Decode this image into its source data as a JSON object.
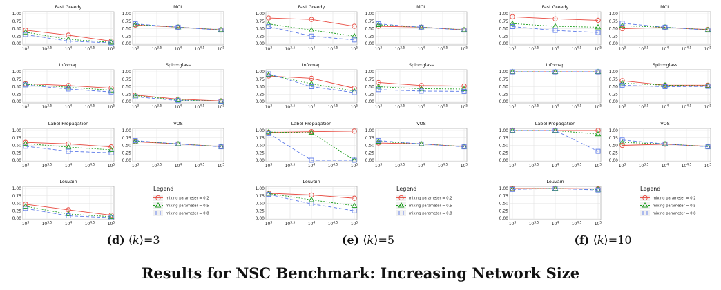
{
  "figure": {
    "title": "Results for NSC Benchmark: Increasing Network Size",
    "captions": [
      {
        "label": "(d)",
        "k": "3"
      },
      {
        "label": "(e)",
        "k": "5"
      },
      {
        "label": "(f)",
        "k": "10"
      }
    ]
  },
  "legend": {
    "title": "Legend",
    "entries": [
      "mixing parameter = 0.2",
      "mixing parameter = 0.5",
      "mixing parameter = 0.8"
    ]
  },
  "series_colors": [
    "#e8493f",
    "#1a9c1a",
    "#5a78e8"
  ],
  "axis": {
    "x_ticks": [
      "10^3",
      "10^3.5",
      "10^4",
      "10^4.5",
      "10^5"
    ],
    "y_ticks": [
      "0.00",
      "0.25",
      "0.50",
      "0.75",
      "1.00"
    ],
    "ylim": [
      0,
      1
    ],
    "x_scale": "log10",
    "grid": true
  },
  "chart_data": [
    {
      "type": "line",
      "group": "<k>=3",
      "x": [
        1000,
        10000,
        100000
      ],
      "panels": [
        {
          "title": "Fast Greedy",
          "series": [
            {
              "name": "mixing parameter = 0.2",
              "values": [
                0.45,
                0.28,
                0.08
              ]
            },
            {
              "name": "mixing parameter = 0.5",
              "values": [
                0.38,
                0.14,
                0.04
              ]
            },
            {
              "name": "mixing parameter = 0.8",
              "values": [
                0.3,
                0.08,
                0.02
              ]
            }
          ]
        },
        {
          "title": "MCL",
          "series": [
            {
              "name": "mixing parameter = 0.2",
              "values": [
                0.62,
                0.55,
                0.46
              ]
            },
            {
              "name": "mixing parameter = 0.5",
              "values": [
                0.64,
                0.55,
                0.46
              ]
            },
            {
              "name": "mixing parameter = 0.8",
              "values": [
                0.66,
                0.55,
                0.45
              ]
            }
          ]
        },
        {
          "title": "Infomap",
          "series": [
            {
              "name": "mixing parameter = 0.2",
              "values": [
                0.6,
                0.54,
                0.45
              ]
            },
            {
              "name": "mixing parameter = 0.5",
              "values": [
                0.58,
                0.48,
                0.38
              ]
            },
            {
              "name": "mixing parameter = 0.8",
              "values": [
                0.56,
                0.42,
                0.32
              ]
            }
          ]
        },
        {
          "title": "Spin−glass",
          "series": [
            {
              "name": "mixing parameter = 0.2",
              "values": [
                0.22,
                0.08,
                0.02
              ]
            },
            {
              "name": "mixing parameter = 0.5",
              "values": [
                0.2,
                0.05,
                0.01
              ]
            },
            {
              "name": "mixing parameter = 0.8",
              "values": [
                0.16,
                0.03,
                0.01
              ]
            }
          ]
        },
        {
          "title": "Label Propagation",
          "series": [
            {
              "name": "mixing parameter = 0.2",
              "values": [
                0.6,
                0.55,
                0.45
              ]
            },
            {
              "name": "mixing parameter = 0.5",
              "values": [
                0.56,
                0.44,
                0.35
              ]
            },
            {
              "name": "mixing parameter = 0.8",
              "values": [
                0.47,
                0.3,
                0.25
              ]
            }
          ]
        },
        {
          "title": "VOS",
          "series": [
            {
              "name": "mixing parameter = 0.2",
              "values": [
                0.62,
                0.55,
                0.46
              ]
            },
            {
              "name": "mixing parameter = 0.5",
              "values": [
                0.64,
                0.55,
                0.46
              ]
            },
            {
              "name": "mixing parameter = 0.8",
              "values": [
                0.66,
                0.55,
                0.45
              ]
            }
          ]
        },
        {
          "title": "Louvain",
          "series": [
            {
              "name": "mixing parameter = 0.2",
              "values": [
                0.47,
                0.28,
                0.1
              ]
            },
            {
              "name": "mixing parameter = 0.5",
              "values": [
                0.4,
                0.14,
                0.05
              ]
            },
            {
              "name": "mixing parameter = 0.8",
              "values": [
                0.33,
                0.08,
                0.02
              ]
            }
          ]
        }
      ]
    },
    {
      "type": "line",
      "group": "<k>=5",
      "x": [
        1000,
        10000,
        100000
      ],
      "panels": [
        {
          "title": "Fast Greedy",
          "series": [
            {
              "name": "mixing parameter = 0.2",
              "values": [
                0.86,
                0.81,
                0.58
              ]
            },
            {
              "name": "mixing parameter = 0.5",
              "values": [
                0.66,
                0.45,
                0.25
              ]
            },
            {
              "name": "mixing parameter = 0.8",
              "values": [
                0.57,
                0.25,
                0.12
              ]
            }
          ]
        },
        {
          "title": "MCL",
          "series": [
            {
              "name": "mixing parameter = 0.2",
              "values": [
                0.58,
                0.55,
                0.46
              ]
            },
            {
              "name": "mixing parameter = 0.5",
              "values": [
                0.63,
                0.55,
                0.46
              ]
            },
            {
              "name": "mixing parameter = 0.8",
              "values": [
                0.66,
                0.55,
                0.45
              ]
            }
          ]
        },
        {
          "title": "Infomap",
          "series": [
            {
              "name": "mixing parameter = 0.2",
              "values": [
                0.86,
                0.78,
                0.45
              ]
            },
            {
              "name": "mixing parameter = 0.5",
              "values": [
                0.9,
                0.6,
                0.35
              ]
            },
            {
              "name": "mixing parameter = 0.8",
              "values": [
                0.93,
                0.5,
                0.3
              ]
            }
          ]
        },
        {
          "title": "Spin−glass",
          "series": [
            {
              "name": "mixing parameter = 0.2",
              "values": [
                0.64,
                0.54,
                0.52
              ]
            },
            {
              "name": "mixing parameter = 0.5",
              "values": [
                0.5,
                0.43,
                0.42
              ]
            },
            {
              "name": "mixing parameter = 0.8",
              "values": [
                0.4,
                0.35,
                0.34
              ]
            }
          ]
        },
        {
          "title": "Label Propagation",
          "series": [
            {
              "name": "mixing parameter = 0.2",
              "values": [
                0.94,
                0.96,
                0.98
              ]
            },
            {
              "name": "mixing parameter = 0.5",
              "values": [
                0.95,
                0.93,
                0.0
              ]
            },
            {
              "name": "mixing parameter = 0.8",
              "values": [
                0.9,
                0.0,
                0.0
              ]
            }
          ]
        },
        {
          "title": "VOS",
          "series": [
            {
              "name": "mixing parameter = 0.2",
              "values": [
                0.58,
                0.55,
                0.46
              ]
            },
            {
              "name": "mixing parameter = 0.5",
              "values": [
                0.63,
                0.55,
                0.46
              ]
            },
            {
              "name": "mixing parameter = 0.8",
              "values": [
                0.66,
                0.55,
                0.45
              ]
            }
          ]
        },
        {
          "title": "Louvain",
          "series": [
            {
              "name": "mixing parameter = 0.2",
              "values": [
                0.84,
                0.78,
                0.67
              ]
            },
            {
              "name": "mixing parameter = 0.5",
              "values": [
                0.83,
                0.62,
                0.42
              ]
            },
            {
              "name": "mixing parameter = 0.8",
              "values": [
                0.8,
                0.48,
                0.25
              ]
            }
          ]
        }
      ]
    },
    {
      "type": "line",
      "group": "<k>=10",
      "x": [
        1000,
        10000,
        100000
      ],
      "panels": [
        {
          "title": "Fast Greedy",
          "series": [
            {
              "name": "mixing parameter = 0.2",
              "values": [
                0.9,
                0.83,
                0.78
              ]
            },
            {
              "name": "mixing parameter = 0.5",
              "values": [
                0.67,
                0.58,
                0.55
              ]
            },
            {
              "name": "mixing parameter = 0.8",
              "values": [
                0.57,
                0.44,
                0.37
              ]
            }
          ]
        },
        {
          "title": "MCL",
          "series": [
            {
              "name": "mixing parameter = 0.2",
              "values": [
                0.5,
                0.54,
                0.47
              ]
            },
            {
              "name": "mixing parameter = 0.5",
              "values": [
                0.6,
                0.55,
                0.46
              ]
            },
            {
              "name": "mixing parameter = 0.8",
              "values": [
                0.68,
                0.55,
                0.45
              ]
            }
          ]
        },
        {
          "title": "Infomap",
          "series": [
            {
              "name": "mixing parameter = 0.2",
              "values": [
                1.0,
                1.0,
                1.0
              ]
            },
            {
              "name": "mixing parameter = 0.5",
              "values": [
                1.0,
                1.0,
                1.0
              ]
            },
            {
              "name": "mixing parameter = 0.8",
              "values": [
                1.0,
                1.0,
                1.0
              ]
            }
          ]
        },
        {
          "title": "Spin−glass",
          "series": [
            {
              "name": "mixing parameter = 0.2",
              "values": [
                0.7,
                0.55,
                0.55
              ]
            },
            {
              "name": "mixing parameter = 0.5",
              "values": [
                0.62,
                0.55,
                0.53
              ]
            },
            {
              "name": "mixing parameter = 0.8",
              "values": [
                0.55,
                0.5,
                0.51
              ]
            }
          ]
        },
        {
          "title": "Label Propagation",
          "series": [
            {
              "name": "mixing parameter = 0.2",
              "values": [
                1.0,
                1.0,
                1.0
              ]
            },
            {
              "name": "mixing parameter = 0.5",
              "values": [
                1.0,
                1.0,
                0.88
              ]
            },
            {
              "name": "mixing parameter = 0.8",
              "values": [
                1.0,
                1.0,
                0.3
              ]
            }
          ]
        },
        {
          "title": "VOS",
          "series": [
            {
              "name": "mixing parameter = 0.2",
              "values": [
                0.5,
                0.54,
                0.47
              ]
            },
            {
              "name": "mixing parameter = 0.5",
              "values": [
                0.6,
                0.55,
                0.46
              ]
            },
            {
              "name": "mixing parameter = 0.8",
              "values": [
                0.68,
                0.55,
                0.45
              ]
            }
          ]
        },
        {
          "title": "Louvain",
          "series": [
            {
              "name": "mixing parameter = 0.2",
              "values": [
                1.0,
                1.0,
                0.99
              ]
            },
            {
              "name": "mixing parameter = 0.5",
              "values": [
                0.99,
                1.0,
                0.97
              ]
            },
            {
              "name": "mixing parameter = 0.8",
              "values": [
                0.97,
                1.0,
                0.95
              ]
            }
          ]
        }
      ]
    }
  ]
}
